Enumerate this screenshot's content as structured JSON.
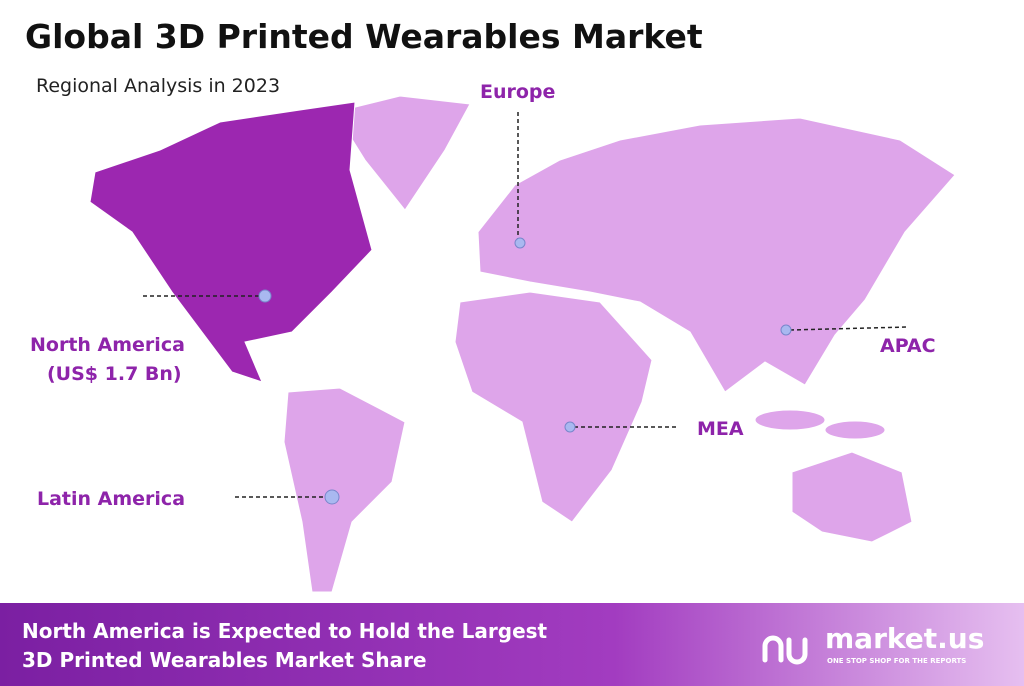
{
  "header": {
    "title": "Global 3D Printed Wearables Market",
    "subtitle": "Regional Analysis in 2023"
  },
  "regions": [
    {
      "label": "Europe"
    },
    {
      "label": "North America",
      "value_label": "(US$ 1.7 Bn)"
    },
    {
      "label": "APAC"
    },
    {
      "label": "MEA"
    },
    {
      "label": "Latin America"
    }
  ],
  "footer": {
    "lines": [
      "North America is Expected to Hold the Largest",
      "3D Printed Wearables Market Share"
    ],
    "logo": "market.us",
    "tagline": "ONE STOP SHOP FOR THE REPORTS"
  }
}
